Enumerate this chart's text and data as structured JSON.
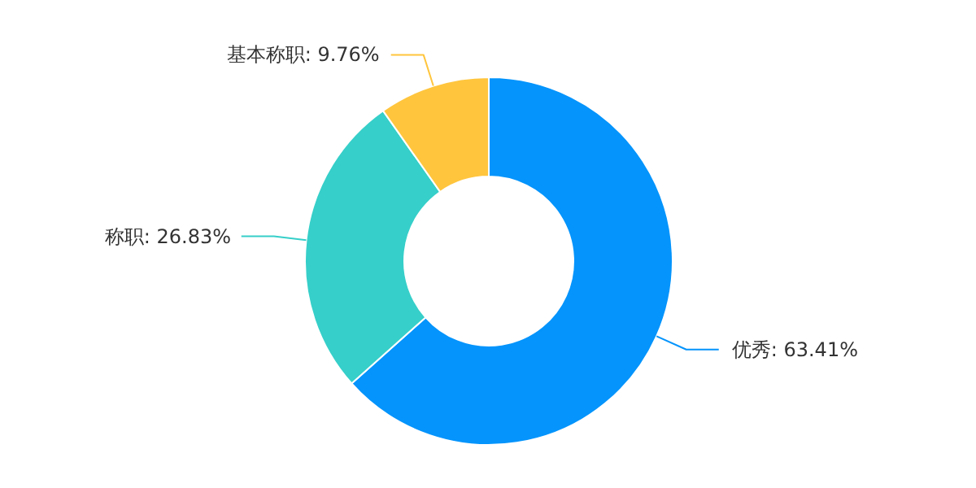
{
  "chart_data": {
    "type": "donut",
    "categories": [
      "优秀",
      "称职",
      "基本称职"
    ],
    "values": [
      63.41,
      26.83,
      9.76
    ],
    "colors": [
      "#0494fc",
      "#36cfc9",
      "#ffc53d"
    ],
    "value_labels": [
      ": 63.41%",
      ": 26.83%",
      ": 9.76%"
    ]
  }
}
